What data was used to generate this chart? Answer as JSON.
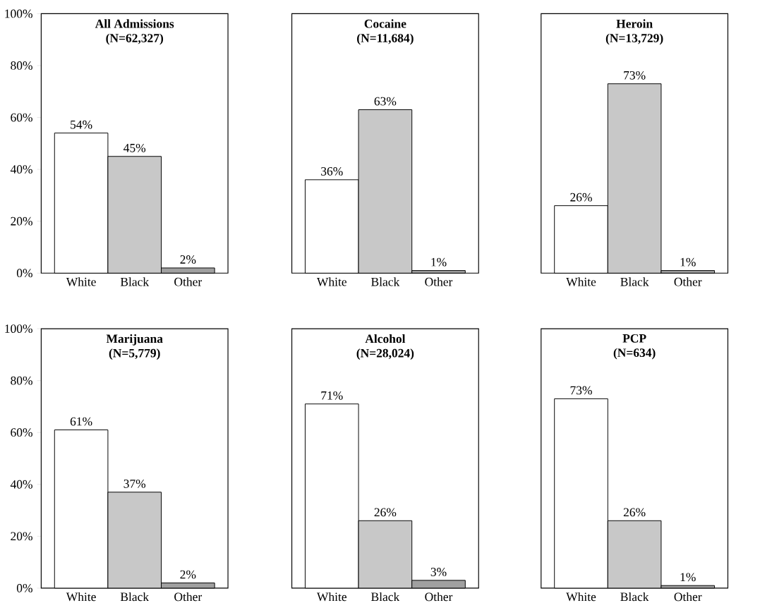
{
  "chart_data": [
    {
      "type": "bar",
      "title": "All Admissions",
      "subtitle": "(N=62,327)",
      "categories": [
        "White",
        "Black",
        "Other"
      ],
      "values": [
        54,
        45,
        2
      ],
      "value_labels": [
        "54%",
        "45%",
        "2%"
      ],
      "colors": [
        "#ffffff",
        "#c8c8c8",
        "#a0a0a0"
      ],
      "ylim": [
        0,
        100
      ],
      "yticks": [
        {
          "value": 0,
          "label": "0%"
        },
        {
          "value": 20,
          "label": "20%"
        },
        {
          "value": 40,
          "label": "40%"
        },
        {
          "value": 60,
          "label": "60%"
        },
        {
          "value": 80,
          "label": "80%"
        },
        {
          "value": 100,
          "label": "100%"
        }
      ]
    },
    {
      "type": "bar",
      "title": "Cocaine",
      "subtitle": "(N=11,684)",
      "categories": [
        "White",
        "Black",
        "Other"
      ],
      "values": [
        36,
        63,
        1
      ],
      "value_labels": [
        "36%",
        "63%",
        "1%"
      ],
      "colors": [
        "#ffffff",
        "#c8c8c8",
        "#a0a0a0"
      ],
      "ylim": [
        0,
        100
      ],
      "tick_labels": "x"
    },
    {
      "type": "bar",
      "title": "Heroin",
      "subtitle": "(N=13,729)",
      "categories": [
        "White",
        "Black",
        "Other"
      ],
      "values": [
        26,
        73,
        1
      ],
      "value_labels": [
        "26%",
        "73%",
        "1%"
      ],
      "colors": [
        "#ffffff",
        "#c8c8c8",
        "#a0a0a0"
      ],
      "ylim": [
        0,
        100
      ],
      "tick_labels": "x"
    },
    {
      "type": "bar",
      "title": "Marijuana",
      "subtitle": "(N=5,779)",
      "categories": [
        "White",
        "Black",
        "Other"
      ],
      "values": [
        61,
        37,
        2
      ],
      "value_labels": [
        "61%",
        "37%",
        "2%"
      ],
      "colors": [
        "#ffffff",
        "#c8c8c8",
        "#a0a0a0"
      ],
      "ylim": [
        0,
        100
      ],
      "yticks": [
        {
          "value": 0,
          "label": "0%"
        },
        {
          "value": 20,
          "label": "20%"
        },
        {
          "value": 40,
          "label": "40%"
        },
        {
          "value": 60,
          "label": "60%"
        },
        {
          "value": 80,
          "label": "80%"
        },
        {
          "value": 100,
          "label": "100%"
        }
      ]
    },
    {
      "type": "bar",
      "title": "Alcohol",
      "subtitle": "(N=28,024)",
      "categories": [
        "White",
        "Black",
        "Other"
      ],
      "values": [
        71,
        26,
        3
      ],
      "value_labels": [
        "71%",
        "26%",
        "3%"
      ],
      "colors": [
        "#ffffff",
        "#c8c8c8",
        "#a0a0a0"
      ],
      "ylim": [
        0,
        100
      ],
      "tick_labels": "x"
    },
    {
      "type": "bar",
      "title": "PCP",
      "subtitle": "(N=634)",
      "categories": [
        "White",
        "Black",
        "Other"
      ],
      "values": [
        73,
        26,
        1
      ],
      "value_labels": [
        "73%",
        "26%",
        "1%"
      ],
      "colors": [
        "#ffffff",
        "#c8c8c8",
        "#a0a0a0"
      ],
      "ylim": [
        0,
        100
      ],
      "tick_labels": "x"
    }
  ]
}
